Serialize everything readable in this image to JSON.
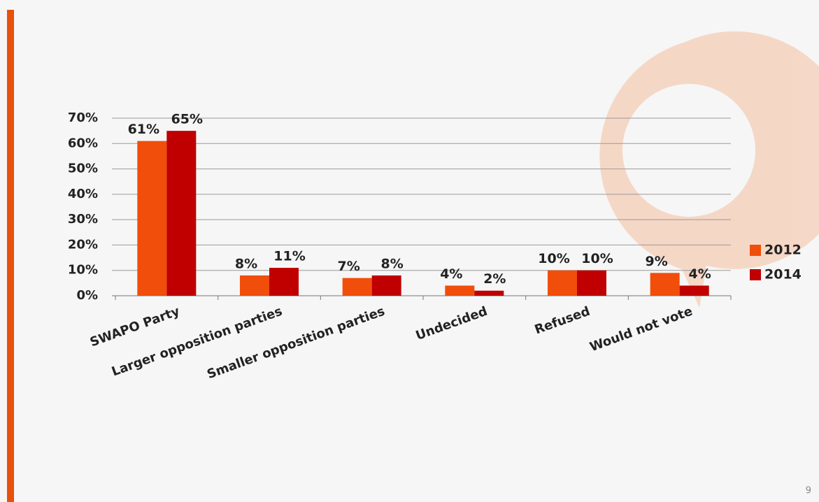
{
  "page_number": "9",
  "chart_data": {
    "type": "bar",
    "categories": [
      "SWAPO Party",
      "Larger opposition parties",
      "Smaller opposition parties",
      "Undecided",
      "Refused",
      "Would not vote"
    ],
    "series": [
      {
        "name": "2012",
        "color": "#f04e0a",
        "values": [
          61,
          8,
          7,
          4,
          10,
          9
        ],
        "value_labels": [
          "61%",
          "8%",
          "7%",
          "4%",
          "10%",
          "9%"
        ]
      },
      {
        "name": "2014",
        "color": "#c00000",
        "values": [
          65,
          11,
          8,
          2,
          10,
          4
        ],
        "value_labels": [
          "65%",
          "11%",
          "8%",
          "2%",
          "10%",
          "4%"
        ]
      }
    ],
    "ylim": [
      0,
      70
    ],
    "yticks": [
      {
        "value": 0,
        "label": "0%"
      },
      {
        "value": 10,
        "label": "10%"
      },
      {
        "value": 20,
        "label": "20%"
      },
      {
        "value": 30,
        "label": "30%"
      },
      {
        "value": 40,
        "label": "40%"
      },
      {
        "value": 50,
        "label": "50%"
      },
      {
        "value": 60,
        "label": "60%"
      },
      {
        "value": 70,
        "label": "70%"
      }
    ],
    "grid": true,
    "legend": "right"
  }
}
